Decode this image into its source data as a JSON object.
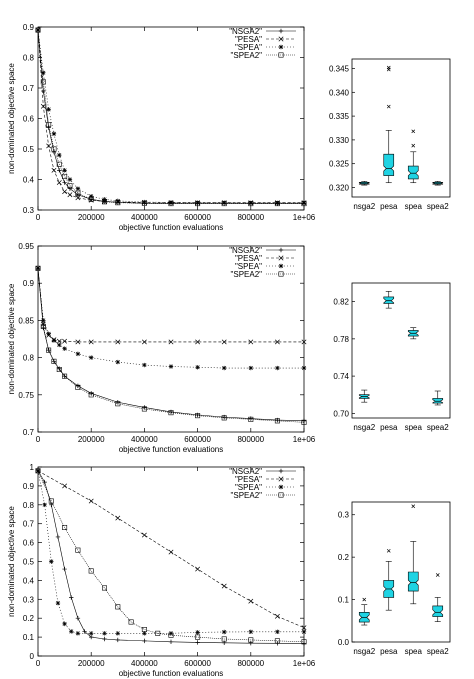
{
  "chart_data": [
    {
      "type": "line",
      "xlabel": "objective function evaluations",
      "ylabel": "non-dominated objective space",
      "xlim": [
        0,
        1000000
      ],
      "ylim": [
        0.3,
        0.9
      ],
      "xticks": [
        "0",
        "200000",
        "400000",
        "600000",
        "800000",
        "1e+06"
      ],
      "yticks": [
        "0.3",
        "0.4",
        "0.5",
        "0.6",
        "0.7",
        "0.8",
        "0.9"
      ],
      "legend_position": "top-right",
      "series": [
        {
          "name": "\"NSGA2\"",
          "marker": "plus",
          "x": [
            0,
            20000,
            40000,
            60000,
            80000,
            100000,
            120000,
            150000,
            200000,
            250000,
            300000,
            400000,
            500000,
            600000,
            700000,
            800000,
            900000,
            1000000
          ],
          "values": [
            0.89,
            0.69,
            0.57,
            0.49,
            0.43,
            0.39,
            0.37,
            0.35,
            0.335,
            0.328,
            0.325,
            0.322,
            0.321,
            0.321,
            0.321,
            0.321,
            0.321,
            0.321
          ]
        },
        {
          "name": "\"PESA\"",
          "marker": "cross",
          "x": [
            0,
            20000,
            40000,
            60000,
            80000,
            100000,
            120000,
            150000,
            200000,
            250000,
            300000,
            400000,
            500000,
            600000,
            700000,
            800000,
            900000,
            1000000
          ],
          "values": [
            0.89,
            0.64,
            0.51,
            0.43,
            0.39,
            0.36,
            0.35,
            0.34,
            0.332,
            0.328,
            0.326,
            0.325,
            0.324,
            0.324,
            0.324,
            0.324,
            0.324,
            0.324
          ]
        },
        {
          "name": "\"SPEA\"",
          "marker": "star",
          "x": [
            0,
            20000,
            40000,
            60000,
            80000,
            100000,
            120000,
            150000,
            200000,
            250000,
            300000,
            400000,
            500000,
            600000,
            700000,
            800000,
            900000,
            1000000
          ],
          "values": [
            0.89,
            0.75,
            0.63,
            0.55,
            0.48,
            0.43,
            0.4,
            0.37,
            0.345,
            0.335,
            0.33,
            0.326,
            0.325,
            0.324,
            0.324,
            0.323,
            0.323,
            0.323
          ]
        },
        {
          "name": "\"SPEA2\"",
          "marker": "square",
          "x": [
            0,
            20000,
            40000,
            60000,
            80000,
            100000,
            120000,
            150000,
            200000,
            250000,
            300000,
            400000,
            500000,
            600000,
            700000,
            800000,
            900000,
            1000000
          ],
          "values": [
            0.89,
            0.72,
            0.58,
            0.5,
            0.45,
            0.41,
            0.38,
            0.355,
            0.335,
            0.327,
            0.324,
            0.322,
            0.321,
            0.321,
            0.321,
            0.321,
            0.321,
            0.321
          ]
        }
      ]
    },
    {
      "type": "boxplot",
      "categories": [
        "nsga2",
        "pesa",
        "spea",
        "spea2"
      ],
      "ylim": [
        0.318,
        0.347
      ],
      "yticks": [
        "0.320",
        "0.325",
        "0.330",
        "0.335",
        "0.340",
        "0.345"
      ],
      "boxes": [
        {
          "min": 0.3205,
          "q1": 0.3207,
          "median": 0.3209,
          "q3": 0.3211,
          "max": 0.3213,
          "outliers": []
        },
        {
          "min": 0.321,
          "q1": 0.3225,
          "median": 0.324,
          "q3": 0.327,
          "max": 0.332,
          "outliers": [
            0.337,
            0.3448,
            0.3452
          ]
        },
        {
          "min": 0.321,
          "q1": 0.3218,
          "median": 0.323,
          "q3": 0.3245,
          "max": 0.3275,
          "outliers": [
            0.3288,
            0.3318
          ]
        },
        {
          "min": 0.3205,
          "q1": 0.3207,
          "median": 0.3209,
          "q3": 0.3211,
          "max": 0.3213,
          "outliers": []
        }
      ]
    },
    {
      "type": "line",
      "xlabel": "objective function evaluations",
      "ylabel": "non-dominated objective space",
      "xlim": [
        0,
        1000000
      ],
      "ylim": [
        0.7,
        0.95
      ],
      "xticks": [
        "0",
        "200000",
        "400000",
        "600000",
        "800000",
        "1e+06"
      ],
      "yticks": [
        "0.7",
        "0.75",
        "0.8",
        "0.85",
        "0.9",
        "0.95"
      ],
      "legend_position": "top-right",
      "series": [
        {
          "name": "\"NSGA2\"",
          "marker": "plus",
          "x": [
            0,
            20000,
            40000,
            60000,
            80000,
            100000,
            150000,
            200000,
            300000,
            400000,
            500000,
            600000,
            700000,
            800000,
            900000,
            1000000
          ],
          "values": [
            0.92,
            0.84,
            0.81,
            0.795,
            0.785,
            0.775,
            0.762,
            0.752,
            0.74,
            0.733,
            0.727,
            0.723,
            0.72,
            0.718,
            0.716,
            0.715
          ]
        },
        {
          "name": "\"PESA\"",
          "marker": "cross",
          "x": [
            0,
            20000,
            40000,
            60000,
            80000,
            100000,
            150000,
            200000,
            300000,
            400000,
            500000,
            600000,
            700000,
            800000,
            900000,
            1000000
          ],
          "values": [
            0.92,
            0.845,
            0.83,
            0.824,
            0.822,
            0.822,
            0.821,
            0.821,
            0.821,
            0.821,
            0.821,
            0.821,
            0.821,
            0.821,
            0.821,
            0.821
          ]
        },
        {
          "name": "\"SPEA\"",
          "marker": "star",
          "x": [
            0,
            20000,
            40000,
            60000,
            80000,
            100000,
            150000,
            200000,
            300000,
            400000,
            500000,
            600000,
            700000,
            800000,
            900000,
            1000000
          ],
          "values": [
            0.92,
            0.85,
            0.832,
            0.823,
            0.817,
            0.812,
            0.805,
            0.8,
            0.794,
            0.79,
            0.788,
            0.787,
            0.786,
            0.786,
            0.786,
            0.786
          ]
        },
        {
          "name": "\"SPEA2\"",
          "marker": "square",
          "x": [
            0,
            20000,
            40000,
            60000,
            80000,
            100000,
            150000,
            200000,
            300000,
            400000,
            500000,
            600000,
            700000,
            800000,
            900000,
            1000000
          ],
          "values": [
            0.92,
            0.842,
            0.81,
            0.795,
            0.784,
            0.775,
            0.76,
            0.75,
            0.738,
            0.731,
            0.726,
            0.722,
            0.719,
            0.717,
            0.715,
            0.713
          ]
        }
      ]
    },
    {
      "type": "boxplot",
      "categories": [
        "nsga2",
        "pesa",
        "spea",
        "spea2"
      ],
      "ylim": [
        0.695,
        0.84
      ],
      "yticks": [
        "0.70",
        "0.74",
        "0.78",
        "0.82"
      ],
      "boxes": [
        {
          "min": 0.712,
          "q1": 0.716,
          "median": 0.718,
          "q3": 0.72,
          "max": 0.725,
          "outliers": []
        },
        {
          "min": 0.813,
          "q1": 0.818,
          "median": 0.821,
          "q3": 0.825,
          "max": 0.831,
          "outliers": []
        },
        {
          "min": 0.78,
          "q1": 0.783,
          "median": 0.786,
          "q3": 0.789,
          "max": 0.792,
          "outliers": []
        },
        {
          "min": 0.709,
          "q1": 0.711,
          "median": 0.713,
          "q3": 0.716,
          "max": 0.724,
          "outliers": []
        }
      ]
    },
    {
      "type": "line",
      "xlabel": "objective function evaluations",
      "ylabel": "non-dominated objective space",
      "xlim": [
        0,
        1000000
      ],
      "ylim": [
        0,
        1
      ],
      "xticks": [
        "0",
        "200000",
        "400000",
        "600000",
        "800000",
        "1e+06"
      ],
      "yticks": [
        "0",
        "0.1",
        "0.2",
        "0.3",
        "0.4",
        "0.5",
        "0.6",
        "0.7",
        "0.8",
        "0.9",
        "1"
      ],
      "legend_position": "top-right",
      "series": [
        {
          "name": "\"NSGA2\"",
          "marker": "plus",
          "x": [
            0,
            25000,
            50000,
            75000,
            100000,
            125000,
            150000,
            175000,
            200000,
            250000,
            300000,
            400000,
            500000,
            600000,
            700000,
            800000,
            900000,
            1000000
          ],
          "values": [
            0.98,
            0.92,
            0.8,
            0.63,
            0.46,
            0.31,
            0.2,
            0.13,
            0.1,
            0.09,
            0.085,
            0.08,
            0.075,
            0.072,
            0.07,
            0.068,
            0.067,
            0.066
          ]
        },
        {
          "name": "\"PESA\"",
          "marker": "cross",
          "x": [
            0,
            100000,
            200000,
            300000,
            400000,
            500000,
            600000,
            700000,
            800000,
            900000,
            1000000
          ],
          "values": [
            0.98,
            0.9,
            0.82,
            0.73,
            0.64,
            0.55,
            0.46,
            0.37,
            0.29,
            0.21,
            0.15
          ]
        },
        {
          "name": "\"SPEA\"",
          "marker": "star",
          "x": [
            0,
            25000,
            50000,
            75000,
            100000,
            125000,
            150000,
            200000,
            250000,
            300000,
            400000,
            500000,
            600000,
            700000,
            800000,
            900000,
            1000000
          ],
          "values": [
            0.98,
            0.8,
            0.5,
            0.28,
            0.17,
            0.13,
            0.12,
            0.12,
            0.12,
            0.12,
            0.12,
            0.12,
            0.125,
            0.127,
            0.128,
            0.128,
            0.128
          ]
        },
        {
          "name": "\"SPEA2\"",
          "marker": "square",
          "x": [
            0,
            50000,
            100000,
            150000,
            200000,
            250000,
            300000,
            350000,
            400000,
            450000,
            500000,
            600000,
            700000,
            800000,
            900000,
            1000000
          ],
          "values": [
            0.98,
            0.82,
            0.68,
            0.56,
            0.45,
            0.36,
            0.26,
            0.18,
            0.14,
            0.12,
            0.11,
            0.1,
            0.09,
            0.085,
            0.08,
            0.075
          ]
        }
      ]
    },
    {
      "type": "boxplot",
      "categories": [
        "nsga2",
        "pesa",
        "spea",
        "spea2"
      ],
      "ylim": [
        0,
        0.33
      ],
      "yticks": [
        "0.0",
        "0.1",
        "0.2",
        "0.3"
      ],
      "boxes": [
        {
          "min": 0.04,
          "q1": 0.047,
          "median": 0.058,
          "q3": 0.07,
          "max": 0.088,
          "outliers": [
            0.1
          ]
        },
        {
          "min": 0.075,
          "q1": 0.105,
          "median": 0.125,
          "q3": 0.145,
          "max": 0.19,
          "outliers": [
            0.215
          ]
        },
        {
          "min": 0.09,
          "q1": 0.12,
          "median": 0.14,
          "q3": 0.165,
          "max": 0.237,
          "outliers": [
            0.32
          ]
        },
        {
          "min": 0.048,
          "q1": 0.06,
          "median": 0.07,
          "q3": 0.085,
          "max": 0.105,
          "outliers": [
            0.158
          ]
        }
      ]
    }
  ]
}
